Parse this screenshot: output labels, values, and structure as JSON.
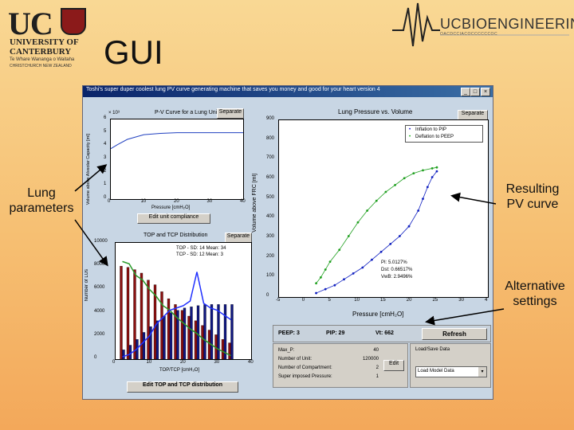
{
  "slide": {
    "title": "GUI",
    "logo_left": {
      "letters": "UC",
      "line1": "UNIVERSITY OF",
      "line2": "CANTERBURY",
      "maori": "Te Whare Wananga o Waitaha",
      "country": "CHRISTCHURCH NEW ZEALAND"
    },
    "logo_right": {
      "text": "UCBIOENGINEERING",
      "subtitle": "OACDCCIACOCCCCCCOC"
    },
    "callouts": {
      "lung": "Lung parameters",
      "pv": "Resulting PV curve",
      "alt": "Alternative settings"
    }
  },
  "window": {
    "title": "Toshi's super duper coolest lung PV curve generating machine that saves you money and good for your heart version 4",
    "controls": [
      "_",
      "□",
      "×"
    ]
  },
  "plot_tl": {
    "title": "P-V Curve for a Lung Unit",
    "separate": "Separate",
    "exponent": "× 10³",
    "ylabel": "Volume above Alveolar Capacity [ml]",
    "xlabel": "Pressure [cmH₂O]",
    "yticks": [
      "0",
      "1",
      "2",
      "3",
      "4",
      "5",
      "6"
    ],
    "xticks": [
      "0",
      "10",
      "20",
      "30",
      "40"
    ],
    "button": "Edit unit compliance",
    "chart_data": {
      "type": "line",
      "x": [
        0,
        2,
        5,
        10,
        15,
        20,
        25,
        30,
        40
      ],
      "y": [
        3.8,
        4.1,
        4.5,
        4.85,
        4.95,
        5.0,
        5.0,
        5.0,
        5.0
      ],
      "xlim": [
        0,
        40
      ],
      "ylim": [
        0,
        6
      ]
    }
  },
  "plot_bl": {
    "title": "TOP and TCP Distribution",
    "separate": "Separate",
    "ylabel": "Number of LUs",
    "xlabel": "TOP/TCP [cmH₂O]",
    "yticks": [
      "0",
      "2000",
      "4000",
      "6000",
      "8000",
      "10000"
    ],
    "xticks": [
      "0",
      "10",
      "20",
      "30",
      "40"
    ],
    "legend": [
      "TOP - SD: 14   Mean: 34",
      "TCP - SD: 12   Mean: 3"
    ],
    "button": "Edit TOP and TCP distribution",
    "chart_data": {
      "type": "bar",
      "x": [
        2,
        4,
        6,
        8,
        10,
        12,
        14,
        16,
        18,
        20,
        22,
        24,
        26,
        28,
        30,
        32,
        34
      ],
      "series": [
        {
          "values": [
            8000,
            7900,
            7700,
            7400,
            6800,
            6400,
            5800,
            5200,
            4700,
            4200,
            3700,
            3300,
            2900,
            2500,
            2100,
            1700,
            1400
          ]
        },
        {
          "values": [
            800,
            1200,
            1700,
            2300,
            2800,
            3300,
            3700,
            4000,
            4200,
            4400,
            4500,
            4600,
            4700,
            4700,
            4700,
            4700,
            4700
          ]
        },
        {
          "values": [
            8400,
            8200,
            7200,
            6800,
            6000,
            5400,
            4600,
            4200,
            3600,
            3100,
            2600,
            2200,
            1700,
            1300,
            900,
            600,
            300
          ]
        },
        {
          "values": [
            200,
            400,
            800,
            1400,
            2000,
            3000,
            3600,
            4200,
            4400,
            4600,
            5000,
            7500,
            4800,
            4400,
            4200,
            3800,
            3400
          ]
        }
      ],
      "xlim": [
        0,
        40
      ],
      "ylim": [
        0,
        10000
      ]
    }
  },
  "plot_right": {
    "title": "Lung Pressure vs. Volume",
    "separate": "Separate",
    "ylabel": "Volume above FRC [ml]",
    "xlabel": "Pressure [cmH₂O]",
    "yticks": [
      "0",
      "100",
      "200",
      "300",
      "400",
      "500",
      "600",
      "700",
      "800",
      "900"
    ],
    "xticks": [
      "-5",
      "0",
      "5",
      "10",
      "15",
      "20",
      "25",
      "30",
      "4"
    ],
    "legend": [
      "Inflation to PIP",
      "Deflation to PEEP"
    ],
    "fit": [
      "PI:     5.0127%",
      "Dst:    0.66517%",
      "VwB:  2.9496%"
    ],
    "chart_data": {
      "type": "scatter",
      "series": [
        {
          "name": "Inflation to PIP",
          "x": [
            3,
            5,
            7,
            9,
            11,
            13,
            15,
            17,
            19,
            21,
            23,
            25,
            26,
            27,
            28,
            29
          ],
          "y": [
            20,
            40,
            60,
            90,
            120,
            150,
            190,
            230,
            270,
            310,
            360,
            440,
            500,
            560,
            610,
            640
          ]
        },
        {
          "name": "Deflation to PEEP",
          "x": [
            29,
            28,
            26,
            24,
            22,
            20,
            18,
            16,
            14,
            12,
            10,
            8,
            6,
            5,
            4,
            3
          ],
          "y": [
            660,
            655,
            645,
            630,
            605,
            570,
            535,
            490,
            440,
            380,
            310,
            240,
            180,
            140,
            100,
            70
          ]
        }
      ],
      "xlim": [
        -5,
        40
      ],
      "ylim": [
        0,
        900
      ]
    }
  },
  "settings": {
    "peep": "PEEP: 3",
    "pip": "PIP: 29",
    "vt": "Vt: 662",
    "refresh": "Refresh",
    "params": [
      {
        "label": "Max_P:",
        "value": "40"
      },
      {
        "label": "Number of Unit:",
        "value": "120000"
      },
      {
        "label": "Number of Compartment:",
        "value": "2"
      },
      {
        "label": "Super imposed Pressure:",
        "value": "1"
      }
    ],
    "edit": "Edit",
    "load_save_label": "Load/Save Data",
    "load_select": "Load Model Data"
  }
}
